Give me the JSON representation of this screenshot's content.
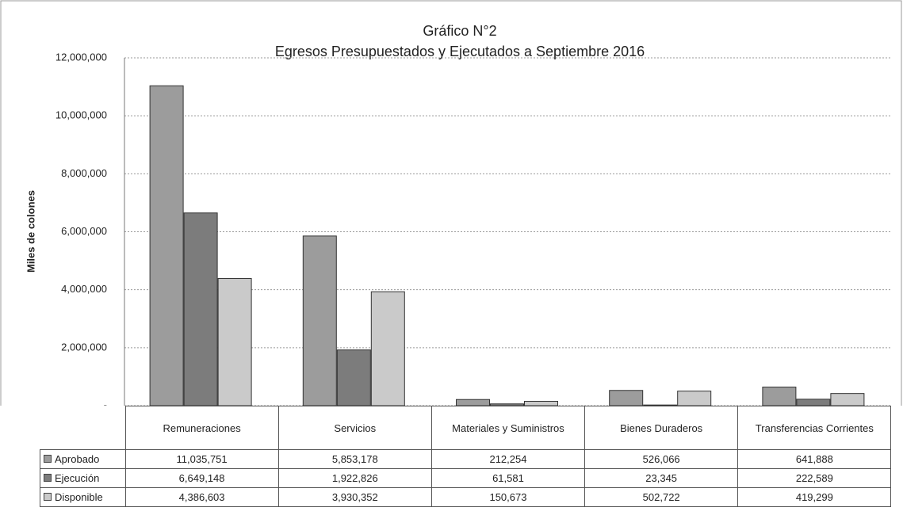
{
  "chart_data": {
    "type": "bar",
    "title": "Gráfico N°2",
    "subtitle": "Egresos Presupuestados y Ejecutados a Septiembre 2016",
    "y_label": "Miles de colones",
    "categories": [
      "Remuneraciones",
      "Servicios",
      "Materiales y Suministros",
      "Bienes Duraderos",
      "Transferencias Corrientes"
    ],
    "series": [
      {
        "name": "Aprobado",
        "color": "#9c9c9c",
        "values": [
          11035751,
          5853178,
          212254,
          526066,
          641888
        ],
        "value_labels": [
          "11,035,751",
          "5,853,178",
          "212,254",
          "526,066",
          "641,888"
        ]
      },
      {
        "name": "Ejecución",
        "color": "#7c7c7c",
        "values": [
          6649148,
          1922826,
          61581,
          23345,
          222589
        ],
        "value_labels": [
          "6,649,148",
          "1,922,826",
          "61,581",
          "23,345",
          "222,589"
        ]
      },
      {
        "name": "Disponible",
        "color": "#cacaca",
        "values": [
          4386603,
          3930352,
          150673,
          502722,
          419299
        ],
        "value_labels": [
          "4,386,603",
          "3,930,352",
          "150,673",
          "502,722",
          "419,299"
        ]
      }
    ],
    "ylim": [
      0,
      12000000
    ],
    "yticks": [
      {
        "value": 0,
        "label": "-"
      },
      {
        "value": 2000000,
        "label": "2,000,000"
      },
      {
        "value": 4000000,
        "label": "4,000,000"
      },
      {
        "value": 6000000,
        "label": "6,000,000"
      },
      {
        "value": 8000000,
        "label": "8,000,000"
      },
      {
        "value": 10000000,
        "label": "10,000,000"
      },
      {
        "value": 12000000,
        "label": "12,000,000"
      }
    ],
    "grid": true
  }
}
